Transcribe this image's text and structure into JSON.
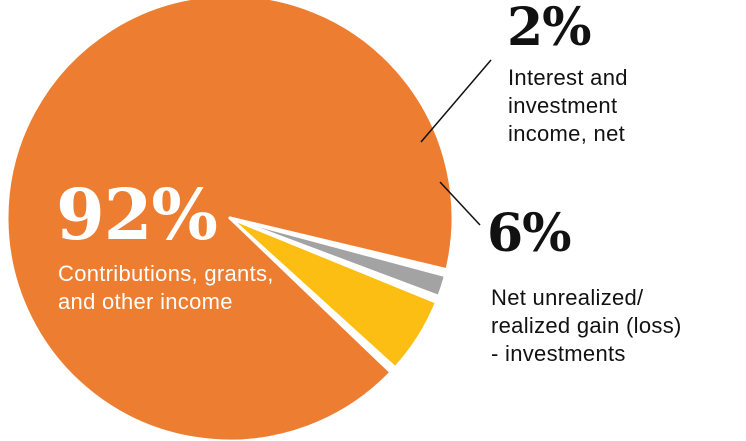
{
  "chart_data": {
    "type": "pie",
    "slices": [
      {
        "label": "Contributions, grants, and other income",
        "value": 92,
        "value_label": "92%",
        "color": "#ED7D31"
      },
      {
        "label": "Net unrealized/ realized gain (loss) - investments",
        "value": 6,
        "value_label": "6%",
        "color": "#FDBE14"
      },
      {
        "label": "Interest and investment income, net",
        "value": 2,
        "value_label": "2%",
        "color": "#A3A3A3"
      }
    ]
  },
  "labels": {
    "contrib": {
      "pct": "92%",
      "lines": [
        "Contributions, grants,",
        "and other income"
      ]
    },
    "interest": {
      "pct": "2%",
      "lines": [
        "Interest and",
        "investment",
        "income, net"
      ]
    },
    "gain": {
      "pct": "6%",
      "lines": [
        "Net unrealized/",
        "realized gain (loss)",
        "- investments"
      ]
    }
  }
}
